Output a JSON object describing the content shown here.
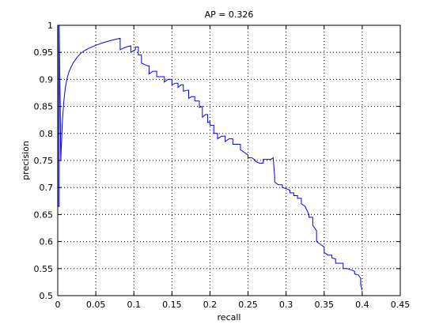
{
  "chart_data": {
    "type": "line",
    "title": "AP = 0.326",
    "xlabel": "recall",
    "ylabel": "precision",
    "xlim": [
      0,
      0.45
    ],
    "ylim": [
      0.5,
      1.0
    ],
    "grid": true,
    "legend": null,
    "x_ticks": [
      "0",
      "0.05",
      "0.1",
      "0.15",
      "0.2",
      "0.25",
      "0.3",
      "0.35",
      "0.4",
      "0.45"
    ],
    "x_tick_values": [
      0,
      0.05,
      0.1,
      0.15,
      0.2,
      0.25,
      0.3,
      0.35,
      0.4,
      0.45
    ],
    "y_ticks": [
      "0.5",
      "0.55",
      "0.6",
      "0.65",
      "0.7",
      "0.75",
      "0.8",
      "0.85",
      "0.9",
      "0.95",
      "1"
    ],
    "y_tick_values": [
      0.5,
      0.55,
      0.6,
      0.65,
      0.7,
      0.75,
      0.8,
      0.85,
      0.9,
      0.95,
      1.0
    ],
    "series": [
      {
        "color": "#0000ff",
        "x": [
          0.0005,
          0.0005,
          0.002,
          0.002,
          0.004,
          0.006,
          0.008,
          0.01,
          0.012,
          0.015,
          0.02,
          0.025,
          0.03,
          0.035,
          0.04,
          0.05,
          0.06,
          0.07,
          0.082,
          0.082,
          0.09,
          0.096,
          0.096,
          0.102,
          0.102,
          0.106,
          0.106,
          0.11,
          0.11,
          0.118,
          0.12,
          0.12,
          0.125,
          0.13,
          0.13,
          0.135,
          0.14,
          0.14,
          0.145,
          0.15,
          0.15,
          0.155,
          0.158,
          0.158,
          0.162,
          0.165,
          0.165,
          0.17,
          0.172,
          0.172,
          0.176,
          0.18,
          0.18,
          0.183,
          0.186,
          0.186,
          0.19,
          0.19,
          0.194,
          0.197,
          0.197,
          0.2,
          0.2,
          0.205,
          0.205,
          0.21,
          0.21,
          0.215,
          0.22,
          0.22,
          0.225,
          0.23,
          0.23,
          0.235,
          0.24,
          0.24,
          0.245,
          0.25,
          0.25,
          0.255,
          0.26,
          0.26,
          0.265,
          0.27,
          0.27,
          0.275,
          0.28,
          0.283,
          0.285,
          0.285,
          0.29,
          0.295,
          0.295,
          0.3,
          0.305,
          0.305,
          0.31,
          0.31,
          0.315,
          0.315,
          0.32,
          0.32,
          0.325,
          0.33,
          0.33,
          0.335,
          0.335,
          0.34,
          0.34,
          0.345,
          0.35,
          0.35,
          0.355,
          0.36,
          0.36,
          0.365,
          0.365,
          0.37,
          0.375,
          0.375,
          0.38,
          0.385,
          0.39,
          0.39,
          0.395,
          0.398,
          0.398,
          0.4
        ],
        "y": [
          1.0,
          0.665,
          0.665,
          1.0,
          0.75,
          0.82,
          0.86,
          0.885,
          0.9,
          0.915,
          0.93,
          0.94,
          0.948,
          0.953,
          0.957,
          0.963,
          0.968,
          0.972,
          0.976,
          0.955,
          0.96,
          0.962,
          0.95,
          0.955,
          0.96,
          0.96,
          0.945,
          0.945,
          0.93,
          0.925,
          0.925,
          0.91,
          0.915,
          0.915,
          0.905,
          0.905,
          0.905,
          0.895,
          0.9,
          0.9,
          0.89,
          0.893,
          0.893,
          0.885,
          0.89,
          0.89,
          0.878,
          0.88,
          0.88,
          0.865,
          0.868,
          0.868,
          0.86,
          0.86,
          0.86,
          0.848,
          0.85,
          0.83,
          0.835,
          0.835,
          0.82,
          0.822,
          0.815,
          0.815,
          0.8,
          0.8,
          0.79,
          0.795,
          0.795,
          0.785,
          0.79,
          0.79,
          0.78,
          0.78,
          0.78,
          0.77,
          0.765,
          0.76,
          0.755,
          0.755,
          0.75,
          0.748,
          0.745,
          0.745,
          0.752,
          0.752,
          0.752,
          0.755,
          0.72,
          0.71,
          0.705,
          0.705,
          0.7,
          0.698,
          0.695,
          0.69,
          0.69,
          0.685,
          0.685,
          0.68,
          0.68,
          0.67,
          0.665,
          0.65,
          0.645,
          0.645,
          0.63,
          0.62,
          0.6,
          0.595,
          0.59,
          0.58,
          0.575,
          0.575,
          0.57,
          0.568,
          0.56,
          0.56,
          0.56,
          0.55,
          0.55,
          0.548,
          0.545,
          0.54,
          0.538,
          0.532,
          0.52,
          0.51
        ]
      }
    ]
  }
}
